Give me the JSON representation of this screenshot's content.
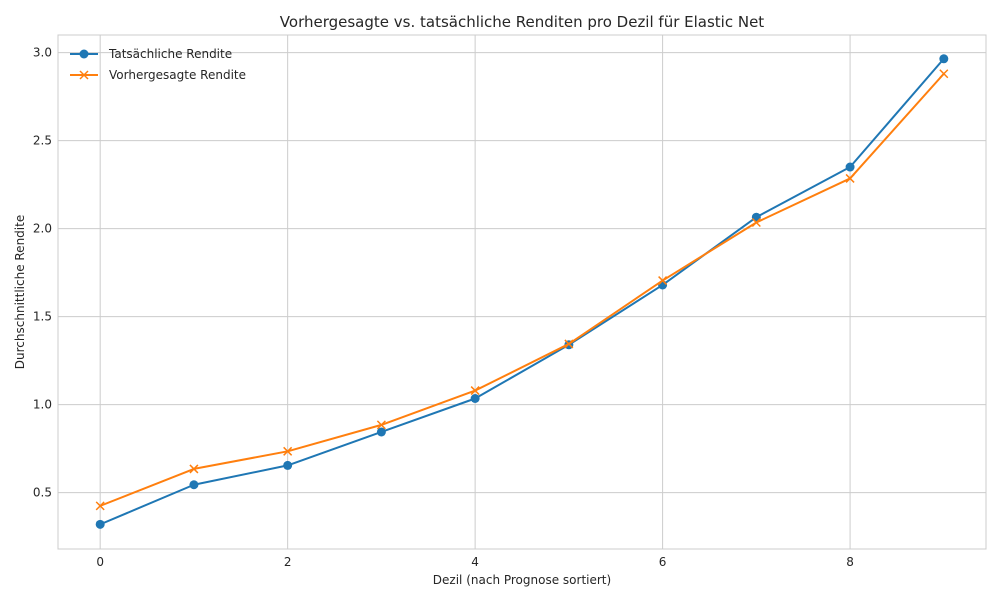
{
  "chart_data": {
    "type": "line",
    "title": "Vorhergesagte vs. tatsächliche Renditen pro Dezil für Elastic Net",
    "xlabel": "Dezil (nach Prognose sortiert)",
    "ylabel": "Durchschnittliche Rendite",
    "x": [
      0,
      1,
      2,
      3,
      4,
      5,
      6,
      7,
      8,
      9
    ],
    "xlim": [
      -0.45,
      9.45
    ],
    "ylim": [
      0.18,
      3.1
    ],
    "xticks": [
      0,
      2,
      4,
      6,
      8
    ],
    "yticks": [
      0.5,
      1.0,
      1.5,
      2.0,
      2.5,
      3.0
    ],
    "xtick_labels": [
      "0",
      "2",
      "4",
      "6",
      "8"
    ],
    "ytick_labels": [
      "0.5",
      "1.0",
      "1.5",
      "2.0",
      "2.5",
      "3.0"
    ],
    "grid": true,
    "legend_position": "top-left",
    "series": [
      {
        "name": "Tatsächliche Rendite",
        "marker": "circle",
        "color": "#1f77b4",
        "values": [
          0.32,
          0.545,
          0.655,
          0.845,
          1.035,
          1.34,
          1.68,
          2.065,
          2.35,
          2.965
        ]
      },
      {
        "name": "Vorhergesagte Rendite",
        "marker": "x",
        "color": "#ff7f0e",
        "values": [
          0.425,
          0.635,
          0.735,
          0.885,
          1.08,
          1.345,
          1.705,
          2.035,
          2.285,
          2.88
        ]
      }
    ]
  }
}
